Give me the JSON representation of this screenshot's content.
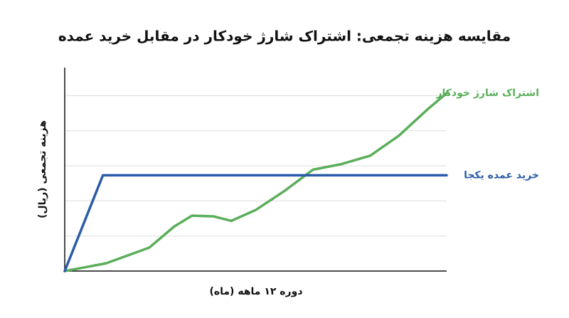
{
  "chart_data": {
    "type": "line",
    "title": "مقایسه هزینه تجمعی: اشتراک شارژ خودکار در مقابل خرید عمده",
    "x_label": "دوره ۱۲ ماهه (ماه)",
    "y_label": "هزینه تجمعی (ریال)",
    "xlim": [
      0,
      12
    ],
    "ylim": [
      0,
      5.8
    ],
    "grid_lines": [
      1,
      2,
      3,
      4,
      5
    ],
    "series": [
      {
        "name": "اشتراک شارژ خودکار",
        "color": "#5aae5a",
        "x": [
          0,
          1.3,
          2.66,
          3.44,
          4.0,
          4.67,
          5.23,
          6.0,
          6.9,
          7.8,
          8.7,
          9.6,
          10.5,
          11.4,
          12
        ],
        "values": [
          0,
          0.22,
          0.67,
          1.27,
          1.58,
          1.56,
          1.43,
          1.74,
          2.28,
          2.89,
          3.05,
          3.29,
          3.86,
          4.61,
          5.07
        ]
      },
      {
        "name": "خرید عمده یکجا",
        "color": "#2a5caa",
        "x": [
          0,
          1.2,
          12
        ],
        "values": [
          0,
          2.73,
          2.73
        ]
      }
    ]
  }
}
